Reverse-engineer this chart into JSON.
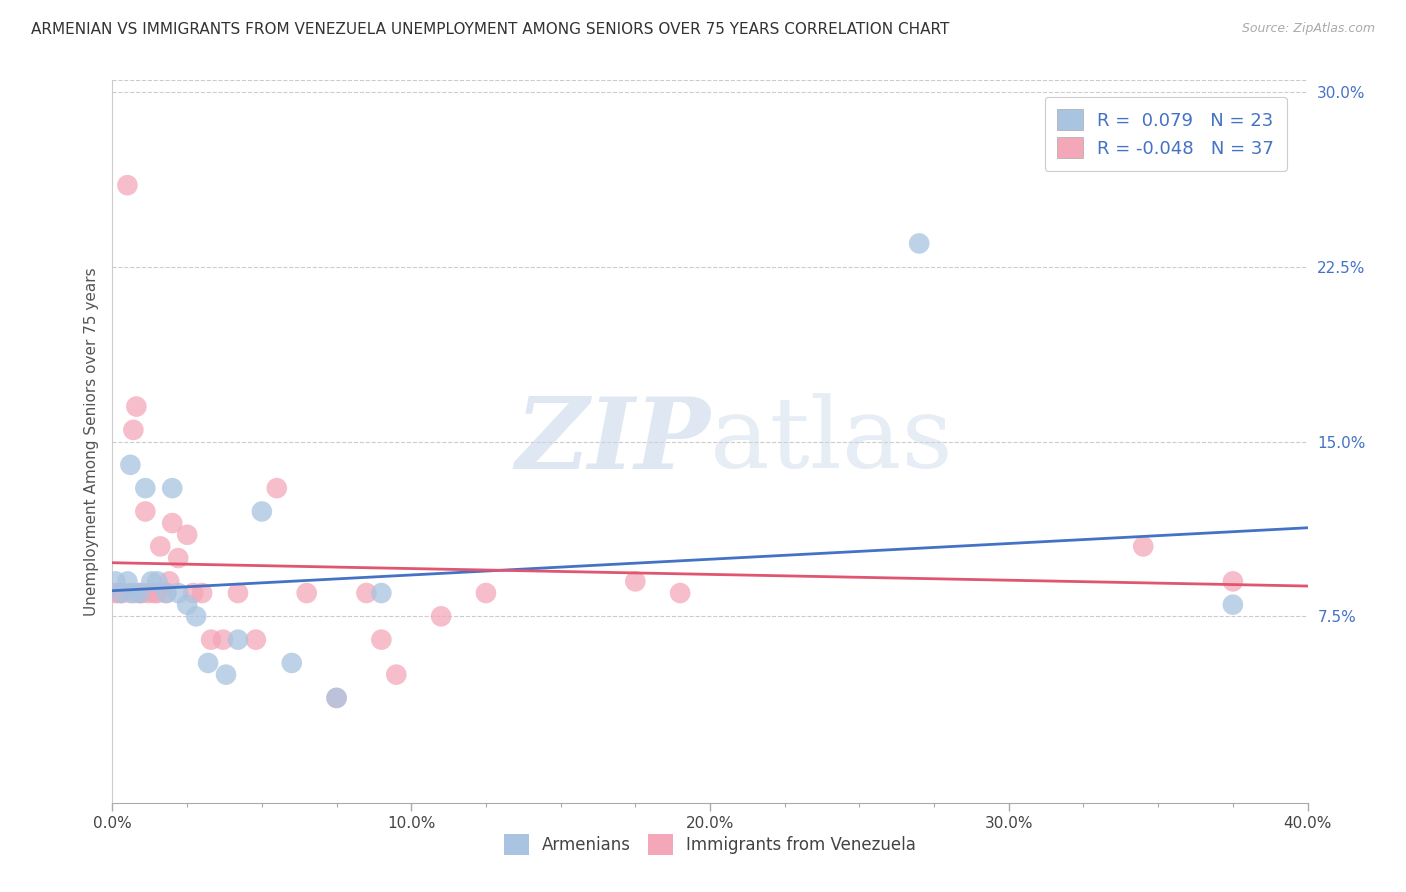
{
  "title": "ARMENIAN VS IMMIGRANTS FROM VENEZUELA UNEMPLOYMENT AMONG SENIORS OVER 75 YEARS CORRELATION CHART",
  "source": "Source: ZipAtlas.com",
  "xlabel_armenians": "Armenians",
  "xlabel_venezuela": "Immigrants from Venezuela",
  "ylabel": "Unemployment Among Seniors over 75 years",
  "xlim": [
    0.0,
    0.4
  ],
  "ylim": [
    -0.005,
    0.305
  ],
  "xticks_major": [
    0.0,
    0.1,
    0.2,
    0.3,
    0.4
  ],
  "xticks_minor": [
    0.025,
    0.05,
    0.075,
    0.125,
    0.15,
    0.175,
    0.225,
    0.25,
    0.275,
    0.325,
    0.35,
    0.375
  ],
  "yticks_right": [
    0.0,
    0.075,
    0.15,
    0.225,
    0.3
  ],
  "ytick_labels_right": [
    "",
    "7.5%",
    "15.0%",
    "22.5%",
    "30.0%"
  ],
  "xtick_labels": [
    "0.0%",
    "",
    "",
    "",
    "10.0%",
    "",
    "",
    "",
    "20.0%",
    "",
    "",
    "",
    "30.0%",
    "",
    "",
    "",
    "40.0%"
  ],
  "legend_r_armenian": "0.079",
  "legend_n_armenian": "23",
  "legend_r_venezuela": "-0.048",
  "legend_n_venezuela": "37",
  "color_armenian": "#a8c4e0",
  "color_venezuela": "#f4a7b9",
  "color_line_armenian": "#4472c4",
  "color_line_venezuela": "#e05570",
  "color_axis_text": "#4472c4",
  "watermark_zip": "ZIP",
  "watermark_atlas": "atlas",
  "armenian_x": [
    0.001,
    0.003,
    0.005,
    0.006,
    0.007,
    0.009,
    0.011,
    0.013,
    0.015,
    0.018,
    0.02,
    0.022,
    0.025,
    0.028,
    0.032,
    0.038,
    0.042,
    0.05,
    0.06,
    0.075,
    0.09,
    0.27,
    0.375
  ],
  "armenian_y": [
    0.09,
    0.085,
    0.09,
    0.14,
    0.085,
    0.085,
    0.13,
    0.09,
    0.09,
    0.085,
    0.13,
    0.085,
    0.08,
    0.075,
    0.055,
    0.05,
    0.065,
    0.12,
    0.055,
    0.04,
    0.085,
    0.235,
    0.08
  ],
  "venezuela_x": [
    0.001,
    0.002,
    0.003,
    0.005,
    0.006,
    0.007,
    0.008,
    0.009,
    0.01,
    0.011,
    0.012,
    0.014,
    0.015,
    0.016,
    0.018,
    0.019,
    0.02,
    0.022,
    0.025,
    0.027,
    0.03,
    0.033,
    0.037,
    0.042,
    0.048,
    0.055,
    0.065,
    0.075,
    0.085,
    0.09,
    0.095,
    0.11,
    0.125,
    0.175,
    0.19,
    0.345,
    0.375
  ],
  "venezuela_y": [
    0.085,
    0.085,
    0.085,
    0.26,
    0.085,
    0.155,
    0.165,
    0.085,
    0.085,
    0.12,
    0.085,
    0.085,
    0.085,
    0.105,
    0.085,
    0.09,
    0.115,
    0.1,
    0.11,
    0.085,
    0.085,
    0.065,
    0.065,
    0.085,
    0.065,
    0.13,
    0.085,
    0.04,
    0.085,
    0.065,
    0.05,
    0.075,
    0.085,
    0.09,
    0.085,
    0.105,
    0.09
  ],
  "blue_line_x": [
    0.0,
    0.4
  ],
  "blue_line_y_start": 0.086,
  "blue_line_y_end": 0.113,
  "pink_line_x": [
    0.0,
    0.4
  ],
  "pink_line_y_start": 0.098,
  "pink_line_y_end": 0.088
}
